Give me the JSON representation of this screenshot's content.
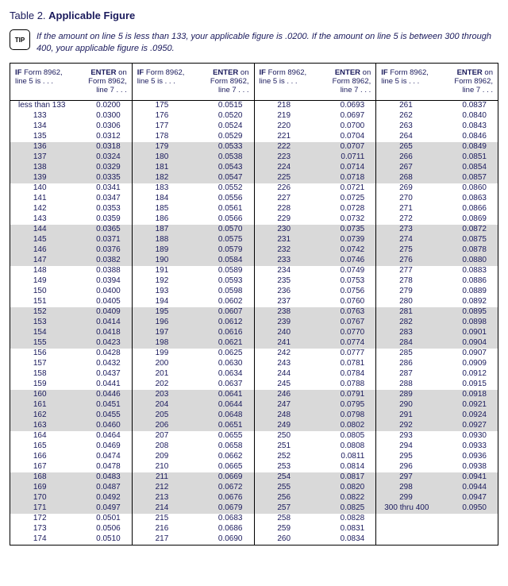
{
  "title_prefix": "Table 2. ",
  "title_bold": "Applicable Figure",
  "tip_label": "TIP",
  "tip_text": "If the amount on line 5 is less than 133, your applicable figure is .0200. If the amount on line 5 is between 300 through 400, your applicable figure is .0950.",
  "header_left_1": "IF",
  "header_left_2": " Form 8962,",
  "header_left_3": "line 5 is . . .",
  "header_right_1": "ENTER",
  "header_right_2": " on",
  "header_right_3": "Form 8962,",
  "header_right_4": "line 7 . . .",
  "columns": [
    {
      "rows": [
        {
          "l": "less than 133",
          "r": "0.0200",
          "wide": true
        },
        {
          "l": "133",
          "r": "0.0300"
        },
        {
          "l": "134",
          "r": "0.0306"
        },
        {
          "l": "135",
          "r": "0.0312"
        },
        {
          "l": "136",
          "r": "0.0318",
          "s": true
        },
        {
          "l": "137",
          "r": "0.0324",
          "s": true
        },
        {
          "l": "138",
          "r": "0.0329",
          "s": true
        },
        {
          "l": "139",
          "r": "0.0335",
          "s": true
        },
        {
          "l": "140",
          "r": "0.0341"
        },
        {
          "l": "141",
          "r": "0.0347"
        },
        {
          "l": "142",
          "r": "0.0353"
        },
        {
          "l": "143",
          "r": "0.0359"
        },
        {
          "l": "144",
          "r": "0.0365",
          "s": true
        },
        {
          "l": "145",
          "r": "0.0371",
          "s": true
        },
        {
          "l": "146",
          "r": "0.0376",
          "s": true
        },
        {
          "l": "147",
          "r": "0.0382",
          "s": true
        },
        {
          "l": "148",
          "r": "0.0388"
        },
        {
          "l": "149",
          "r": "0.0394"
        },
        {
          "l": "150",
          "r": "0.0400"
        },
        {
          "l": "151",
          "r": "0.0405"
        },
        {
          "l": "152",
          "r": "0.0409",
          "s": true
        },
        {
          "l": "153",
          "r": "0.0414",
          "s": true
        },
        {
          "l": "154",
          "r": "0.0418",
          "s": true
        },
        {
          "l": "155",
          "r": "0.0423",
          "s": true
        },
        {
          "l": "156",
          "r": "0.0428"
        },
        {
          "l": "157",
          "r": "0.0432"
        },
        {
          "l": "158",
          "r": "0.0437"
        },
        {
          "l": "159",
          "r": "0.0441"
        },
        {
          "l": "160",
          "r": "0.0446",
          "s": true
        },
        {
          "l": "161",
          "r": "0.0451",
          "s": true
        },
        {
          "l": "162",
          "r": "0.0455",
          "s": true
        },
        {
          "l": "163",
          "r": "0.0460",
          "s": true
        },
        {
          "l": "164",
          "r": "0.0464"
        },
        {
          "l": "165",
          "r": "0.0469"
        },
        {
          "l": "166",
          "r": "0.0474"
        },
        {
          "l": "167",
          "r": "0.0478"
        },
        {
          "l": "168",
          "r": "0.0483",
          "s": true
        },
        {
          "l": "169",
          "r": "0.0487",
          "s": true
        },
        {
          "l": "170",
          "r": "0.0492",
          "s": true
        },
        {
          "l": "171",
          "r": "0.0497",
          "s": true
        },
        {
          "l": "172",
          "r": "0.0501"
        },
        {
          "l": "173",
          "r": "0.0506"
        },
        {
          "l": "174",
          "r": "0.0510"
        }
      ]
    },
    {
      "rows": [
        {
          "l": "175",
          "r": "0.0515"
        },
        {
          "l": "176",
          "r": "0.0520"
        },
        {
          "l": "177",
          "r": "0.0524"
        },
        {
          "l": "178",
          "r": "0.0529"
        },
        {
          "l": "179",
          "r": "0.0533",
          "s": true
        },
        {
          "l": "180",
          "r": "0.0538",
          "s": true
        },
        {
          "l": "181",
          "r": "0.0543",
          "s": true
        },
        {
          "l": "182",
          "r": "0.0547",
          "s": true
        },
        {
          "l": "183",
          "r": "0.0552"
        },
        {
          "l": "184",
          "r": "0.0556"
        },
        {
          "l": "185",
          "r": "0.0561"
        },
        {
          "l": "186",
          "r": "0.0566"
        },
        {
          "l": "187",
          "r": "0.0570",
          "s": true
        },
        {
          "l": "188",
          "r": "0.0575",
          "s": true
        },
        {
          "l": "189",
          "r": "0.0579",
          "s": true
        },
        {
          "l": "190",
          "r": "0.0584",
          "s": true
        },
        {
          "l": "191",
          "r": "0.0589"
        },
        {
          "l": "192",
          "r": "0.0593"
        },
        {
          "l": "193",
          "r": "0.0598"
        },
        {
          "l": "194",
          "r": "0.0602"
        },
        {
          "l": "195",
          "r": "0.0607",
          "s": true
        },
        {
          "l": "196",
          "r": "0.0612",
          "s": true
        },
        {
          "l": "197",
          "r": "0.0616",
          "s": true
        },
        {
          "l": "198",
          "r": "0.0621",
          "s": true
        },
        {
          "l": "199",
          "r": "0.0625"
        },
        {
          "l": "200",
          "r": "0.0630"
        },
        {
          "l": "201",
          "r": "0.0634"
        },
        {
          "l": "202",
          "r": "0.0637"
        },
        {
          "l": "203",
          "r": "0.0641",
          "s": true
        },
        {
          "l": "204",
          "r": "0.0644",
          "s": true
        },
        {
          "l": "205",
          "r": "0.0648",
          "s": true
        },
        {
          "l": "206",
          "r": "0.0651",
          "s": true
        },
        {
          "l": "207",
          "r": "0.0655"
        },
        {
          "l": "208",
          "r": "0.0658"
        },
        {
          "l": "209",
          "r": "0.0662"
        },
        {
          "l": "210",
          "r": "0.0665"
        },
        {
          "l": "211",
          "r": "0.0669",
          "s": true
        },
        {
          "l": "212",
          "r": "0.0672",
          "s": true
        },
        {
          "l": "213",
          "r": "0.0676",
          "s": true
        },
        {
          "l": "214",
          "r": "0.0679",
          "s": true
        },
        {
          "l": "215",
          "r": "0.0683"
        },
        {
          "l": "216",
          "r": "0.0686"
        },
        {
          "l": "217",
          "r": "0.0690"
        }
      ]
    },
    {
      "rows": [
        {
          "l": "218",
          "r": "0.0693"
        },
        {
          "l": "219",
          "r": "0.0697"
        },
        {
          "l": "220",
          "r": "0.0700"
        },
        {
          "l": "221",
          "r": "0.0704"
        },
        {
          "l": "222",
          "r": "0.0707",
          "s": true
        },
        {
          "l": "223",
          "r": "0.0711",
          "s": true
        },
        {
          "l": "224",
          "r": "0.0714",
          "s": true
        },
        {
          "l": "225",
          "r": "0.0718",
          "s": true
        },
        {
          "l": "226",
          "r": "0.0721"
        },
        {
          "l": "227",
          "r": "0.0725"
        },
        {
          "l": "228",
          "r": "0.0728"
        },
        {
          "l": "229",
          "r": "0.0732"
        },
        {
          "l": "230",
          "r": "0.0735",
          "s": true
        },
        {
          "l": "231",
          "r": "0.0739",
          "s": true
        },
        {
          "l": "232",
          "r": "0.0742",
          "s": true
        },
        {
          "l": "233",
          "r": "0.0746",
          "s": true
        },
        {
          "l": "234",
          "r": "0.0749"
        },
        {
          "l": "235",
          "r": "0.0753"
        },
        {
          "l": "236",
          "r": "0.0756"
        },
        {
          "l": "237",
          "r": "0.0760"
        },
        {
          "l": "238",
          "r": "0.0763",
          "s": true
        },
        {
          "l": "239",
          "r": "0.0767",
          "s": true
        },
        {
          "l": "240",
          "r": "0.0770",
          "s": true
        },
        {
          "l": "241",
          "r": "0.0774",
          "s": true
        },
        {
          "l": "242",
          "r": "0.0777"
        },
        {
          "l": "243",
          "r": "0.0781"
        },
        {
          "l": "244",
          "r": "0.0784"
        },
        {
          "l": "245",
          "r": "0.0788"
        },
        {
          "l": "246",
          "r": "0.0791",
          "s": true
        },
        {
          "l": "247",
          "r": "0.0795",
          "s": true
        },
        {
          "l": "248",
          "r": "0.0798",
          "s": true
        },
        {
          "l": "249",
          "r": "0.0802",
          "s": true
        },
        {
          "l": "250",
          "r": "0.0805"
        },
        {
          "l": "251",
          "r": "0.0808"
        },
        {
          "l": "252",
          "r": "0.0811"
        },
        {
          "l": "253",
          "r": "0.0814"
        },
        {
          "l": "254",
          "r": "0.0817",
          "s": true
        },
        {
          "l": "255",
          "r": "0.0820",
          "s": true
        },
        {
          "l": "256",
          "r": "0.0822",
          "s": true
        },
        {
          "l": "257",
          "r": "0.0825",
          "s": true
        },
        {
          "l": "258",
          "r": "0.0828"
        },
        {
          "l": "259",
          "r": "0.0831"
        },
        {
          "l": "260",
          "r": "0.0834"
        }
      ]
    },
    {
      "rows": [
        {
          "l": "261",
          "r": "0.0837"
        },
        {
          "l": "262",
          "r": "0.0840"
        },
        {
          "l": "263",
          "r": "0.0843"
        },
        {
          "l": "264",
          "r": "0.0846"
        },
        {
          "l": "265",
          "r": "0.0849",
          "s": true
        },
        {
          "l": "266",
          "r": "0.0851",
          "s": true
        },
        {
          "l": "267",
          "r": "0.0854",
          "s": true
        },
        {
          "l": "268",
          "r": "0.0857",
          "s": true
        },
        {
          "l": "269",
          "r": "0.0860"
        },
        {
          "l": "270",
          "r": "0.0863"
        },
        {
          "l": "271",
          "r": "0.0866"
        },
        {
          "l": "272",
          "r": "0.0869"
        },
        {
          "l": "273",
          "r": "0.0872",
          "s": true
        },
        {
          "l": "274",
          "r": "0.0875",
          "s": true
        },
        {
          "l": "275",
          "r": "0.0878",
          "s": true
        },
        {
          "l": "276",
          "r": "0.0880",
          "s": true
        },
        {
          "l": "277",
          "r": "0.0883"
        },
        {
          "l": "278",
          "r": "0.0886"
        },
        {
          "l": "279",
          "r": "0.0889"
        },
        {
          "l": "280",
          "r": "0.0892"
        },
        {
          "l": "281",
          "r": "0.0895",
          "s": true
        },
        {
          "l": "282",
          "r": "0.0898",
          "s": true
        },
        {
          "l": "283",
          "r": "0.0901",
          "s": true
        },
        {
          "l": "284",
          "r": "0.0904",
          "s": true
        },
        {
          "l": "285",
          "r": "0.0907"
        },
        {
          "l": "286",
          "r": "0.0909"
        },
        {
          "l": "287",
          "r": "0.0912"
        },
        {
          "l": "288",
          "r": "0.0915"
        },
        {
          "l": "289",
          "r": "0.0918",
          "s": true
        },
        {
          "l": "290",
          "r": "0.0921",
          "s": true
        },
        {
          "l": "291",
          "r": "0.0924",
          "s": true
        },
        {
          "l": "292",
          "r": "0.0927",
          "s": true
        },
        {
          "l": "293",
          "r": "0.0930"
        },
        {
          "l": "294",
          "r": "0.0933"
        },
        {
          "l": "295",
          "r": "0.0936"
        },
        {
          "l": "296",
          "r": "0.0938"
        },
        {
          "l": "297",
          "r": "0.0941",
          "s": true
        },
        {
          "l": "298",
          "r": "0.0944",
          "s": true
        },
        {
          "l": "299",
          "r": "0.0947",
          "s": true
        },
        {
          "l": "300 thru 400",
          "r": "0.0950",
          "s": true
        }
      ]
    }
  ]
}
